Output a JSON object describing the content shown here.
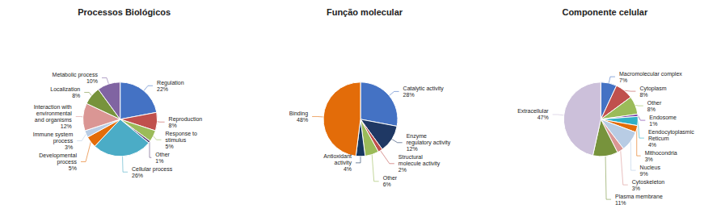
{
  "chart_data": [
    {
      "type": "pie",
      "title": "Processos Biológicos",
      "categories": [
        "Regulation",
        "Reproduction",
        "Response to\nstimulus",
        "Other",
        "Cellular process",
        "Developmental\nprocess",
        "Immune system\nprocess",
        "Interaction with\nenvironmental\nand organisms",
        "Localization",
        "Metabolic process"
      ],
      "values": [
        22,
        8,
        5,
        1,
        26,
        5,
        3,
        12,
        8,
        10
      ],
      "value_labels": [
        "22%",
        "8%",
        "5%",
        "1%",
        "26%",
        "5%",
        "3%",
        "12%",
        "8%",
        "10%"
      ],
      "colors": [
        "#4472C4",
        "#C0504D",
        "#9BBB59",
        "#604A7B",
        "#4BACC6",
        "#E36C09",
        "#B8CCE4",
        "#DA9694",
        "#77933C",
        "#8064A2"
      ],
      "data_labels": true
    },
    {
      "type": "pie",
      "title": "Função molecular",
      "categories": [
        "Catalytic activity",
        "Enzyme\nregulatory activity",
        "Structural\nmolecule activity",
        "Other",
        "Antioxidant\nactivity",
        "Binding"
      ],
      "values": [
        28,
        12,
        2,
        6,
        4,
        48
      ],
      "value_labels": [
        "28%",
        "12%",
        "2%",
        "6%",
        "4%",
        "48%"
      ],
      "colors": [
        "#4472C4",
        "#1F3864",
        "#C0504D",
        "#9BBB59",
        "#17375E",
        "#E36C09"
      ],
      "data_labels": true
    },
    {
      "type": "pie",
      "title": "Componente celular",
      "categories": [
        "Macromolecular complex",
        "Cytoplasm",
        "Other",
        "Endosome",
        "Eendocytoplasmic\nReticum",
        "Mithocondria",
        "Nucleus",
        "Cytoskeleton",
        "Plasma membrane",
        "Extracellular"
      ],
      "values": [
        7,
        8,
        8,
        1,
        4,
        3,
        9,
        3,
        11,
        47
      ],
      "value_labels": [
        "7%",
        "8%",
        "8%",
        "1%",
        "4%",
        "3%",
        "9%",
        "3%",
        "11%",
        "47%"
      ],
      "colors": [
        "#4472C4",
        "#C0504D",
        "#9BBB59",
        "#7030A0",
        "#31B0C6",
        "#E36C09",
        "#B8CCE4",
        "#DA9694",
        "#77933C",
        "#CCC0DA"
      ],
      "data_labels": true
    }
  ]
}
